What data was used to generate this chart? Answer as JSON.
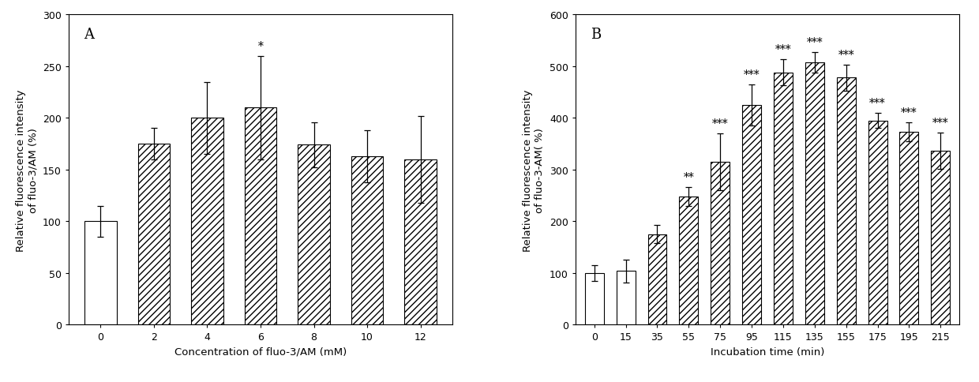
{
  "panel_A": {
    "label": "A",
    "categories": [
      "0",
      "2",
      "4",
      "6",
      "8",
      "10",
      "12"
    ],
    "values": [
      100,
      175,
      200,
      210,
      174,
      163,
      160
    ],
    "errors": [
      15,
      15,
      35,
      50,
      22,
      25,
      42
    ],
    "hatched": [
      false,
      true,
      true,
      true,
      true,
      true,
      true
    ],
    "significance": [
      "",
      "",
      "",
      "*",
      "",
      "",
      ""
    ],
    "xlabel": "Concentration of fluo-3/AM (mM)",
    "ylabel": "Relative fluorescence intensity\nof fluo-3/AM (%)",
    "ylim": [
      0,
      300
    ],
    "yticks": [
      0,
      50,
      100,
      150,
      200,
      250,
      300
    ]
  },
  "panel_B": {
    "label": "B",
    "categories": [
      "0",
      "15",
      "35",
      "55",
      "75",
      "95",
      "115",
      "135",
      "155",
      "175",
      "195",
      "215"
    ],
    "values": [
      100,
      104,
      175,
      248,
      315,
      425,
      488,
      507,
      478,
      395,
      373,
      337
    ],
    "errors": [
      15,
      22,
      18,
      18,
      55,
      40,
      25,
      20,
      25,
      15,
      18,
      35
    ],
    "hatched": [
      false,
      false,
      true,
      true,
      true,
      true,
      true,
      true,
      true,
      true,
      true,
      true
    ],
    "significance": [
      "",
      "",
      "",
      "**",
      "***",
      "***",
      "***",
      "***",
      "***",
      "***",
      "***",
      "***"
    ],
    "xlabel": "Incubation time (min)",
    "ylabel": "Relative fluorescence intensity\nof fluo-3-AM( %)",
    "ylim": [
      0,
      600
    ],
    "yticks": [
      0,
      100,
      200,
      300,
      400,
      500,
      600
    ]
  },
  "bar_color": "#ffffff",
  "edge_color": "#000000",
  "hatch_pattern": "////",
  "fig_bgcolor": "#ffffff",
  "fontsize_label": 9.5,
  "fontsize_tick": 9,
  "fontsize_panel": 13,
  "fontsize_sig": 10
}
